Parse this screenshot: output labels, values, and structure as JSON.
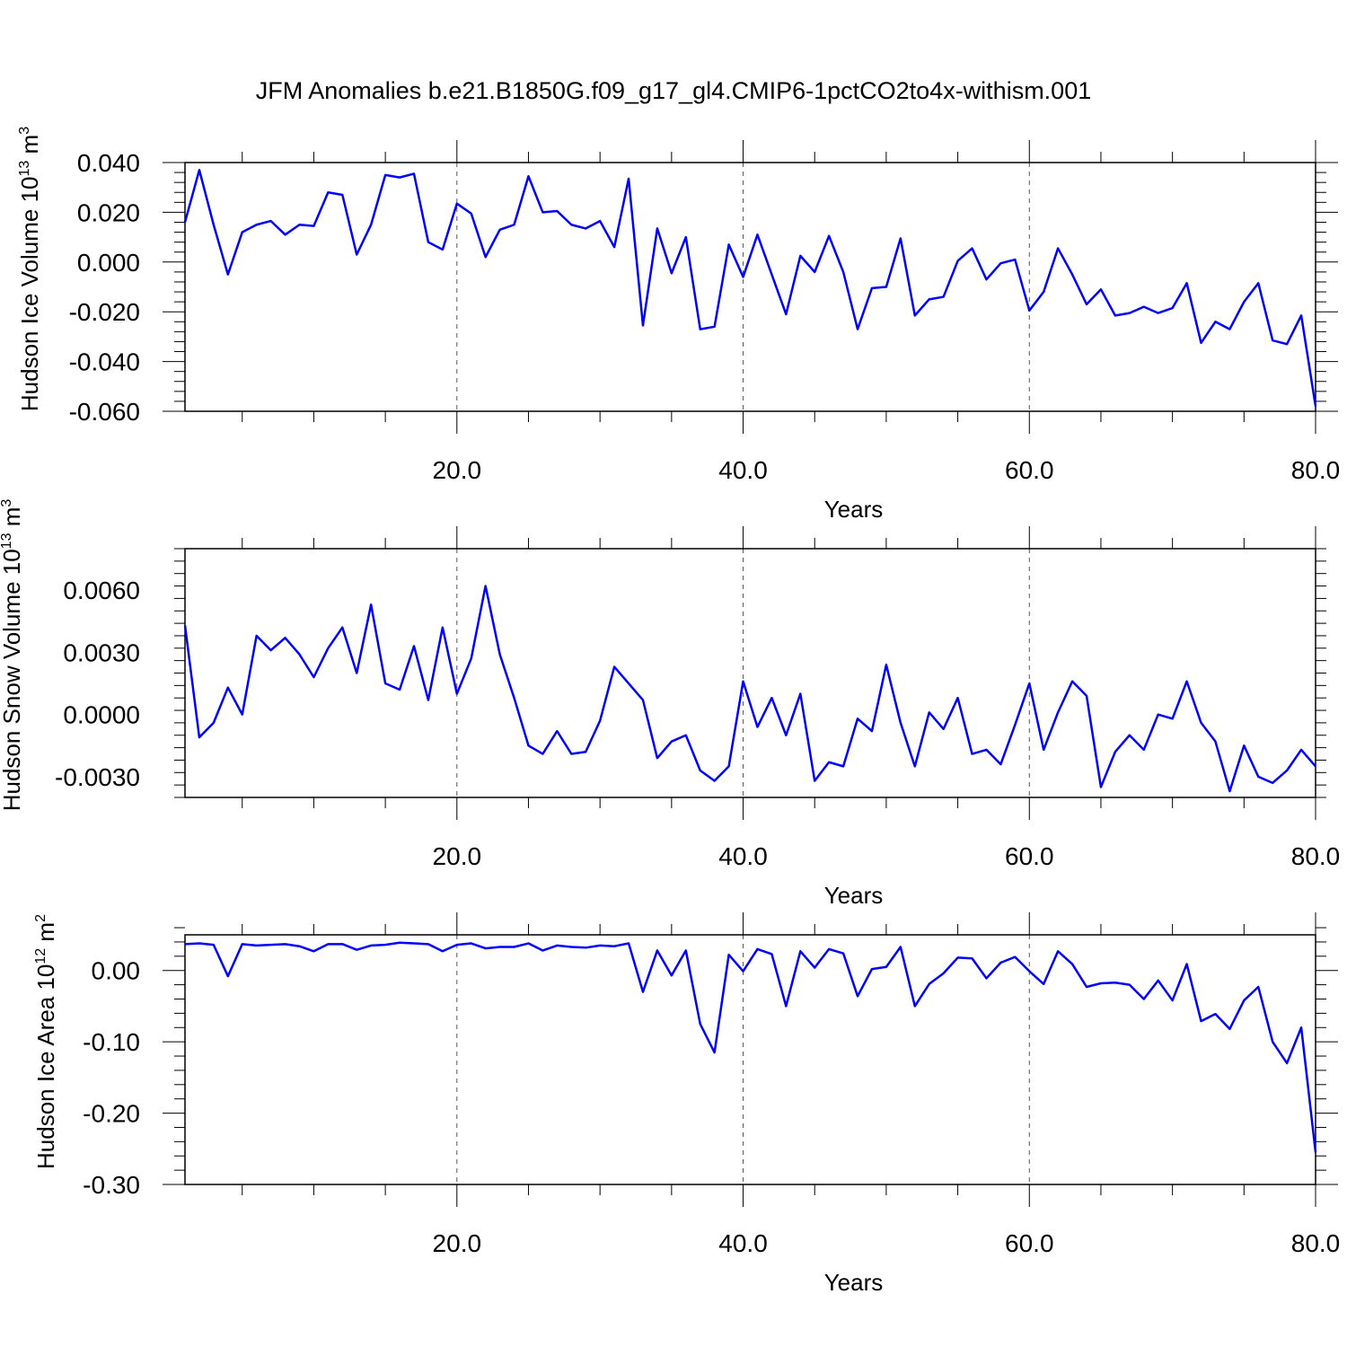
{
  "title": "JFM Anomalies b.e21.B1850G.f09_g17_gl4.CMIP6-1pctCO2to4x-withism.001",
  "colors": {
    "line": "#0000ff",
    "axis": "#000000",
    "grid": "#555555"
  },
  "chart_data": [
    {
      "type": "line",
      "ylabel": {
        "text": "Hudson Ice Volume 10",
        "exp": "13",
        "unit": " m",
        "unit_exp": "3"
      },
      "xlabel": "Years",
      "xlim": [
        1,
        80
      ],
      "ylim": [
        -0.06,
        0.04
      ],
      "x_ticks": [
        20,
        40,
        60,
        80
      ],
      "x_tick_labels": [
        "20.0",
        "40.0",
        "60.0",
        "80.0"
      ],
      "y_ticks": [
        -0.06,
        -0.04,
        -0.02,
        0.0,
        0.02,
        0.04
      ],
      "y_tick_labels": [
        "-0.060",
        "-0.040",
        "-0.020",
        "0.000",
        "0.020",
        "0.040"
      ],
      "grid": "vertical dashed at major x ticks",
      "x": [
        1,
        2,
        3,
        4,
        5,
        6,
        7,
        8,
        9,
        10,
        11,
        12,
        13,
        14,
        15,
        16,
        17,
        18,
        19,
        20,
        21,
        22,
        23,
        24,
        25,
        26,
        27,
        28,
        29,
        30,
        31,
        32,
        33,
        34,
        35,
        36,
        37,
        38,
        39,
        40,
        41,
        42,
        43,
        44,
        45,
        46,
        47,
        48,
        49,
        50,
        51,
        52,
        53,
        54,
        55,
        56,
        57,
        58,
        59,
        60,
        61,
        62,
        63,
        64,
        65,
        66,
        67,
        68,
        69,
        70,
        71,
        72,
        73,
        74,
        75,
        76,
        77,
        78,
        79,
        80
      ],
      "series": [
        {
          "values": [
            0.016,
            0.037,
            0.015,
            -0.005,
            0.012,
            0.015,
            0.0165,
            0.011,
            0.015,
            0.0145,
            0.028,
            0.027,
            0.003,
            0.015,
            0.035,
            0.034,
            0.0355,
            0.008,
            0.005,
            0.0235,
            0.0195,
            0.002,
            0.013,
            0.015,
            0.0345,
            0.02,
            0.0205,
            0.015,
            0.0135,
            0.0165,
            0.006,
            0.0335,
            -0.0255,
            0.0135,
            -0.0045,
            0.01,
            -0.027,
            -0.026,
            0.007,
            -0.006,
            0.011,
            -0.005,
            -0.021,
            0.0025,
            -0.004,
            0.0105,
            -0.004,
            -0.027,
            -0.0105,
            -0.01,
            0.0095,
            -0.0215,
            -0.015,
            -0.014,
            0.0005,
            0.0055,
            -0.007,
            -0.0005,
            0.001,
            -0.0195,
            -0.012,
            0.0055,
            -0.005,
            -0.017,
            -0.011,
            -0.0215,
            -0.0205,
            -0.018,
            -0.0205,
            -0.0185,
            -0.0085,
            -0.0325,
            -0.024,
            -0.027,
            -0.016,
            -0.0085,
            -0.0315,
            -0.033,
            -0.0215,
            -0.058
          ]
        }
      ]
    },
    {
      "type": "line",
      "ylabel": {
        "text": "Hudson Snow Volume 10",
        "exp": "13",
        "unit": " m",
        "unit_exp": "3"
      },
      "xlabel": "Years",
      "xlim": [
        1,
        80
      ],
      "ylim": [
        -0.004,
        0.008
      ],
      "x_ticks": [
        20,
        40,
        60,
        80
      ],
      "x_tick_labels": [
        "20.0",
        "40.0",
        "60.0",
        "80.0"
      ],
      "y_ticks": [
        -0.003,
        0.0,
        0.003,
        0.006
      ],
      "y_tick_labels": [
        "-0.0030",
        "0.0000",
        "0.0030",
        "0.0060"
      ],
      "grid": "vertical dashed at major x ticks",
      "x": [
        1,
        2,
        3,
        4,
        5,
        6,
        7,
        8,
        9,
        10,
        11,
        12,
        13,
        14,
        15,
        16,
        17,
        18,
        19,
        20,
        21,
        22,
        23,
        24,
        25,
        26,
        27,
        28,
        29,
        30,
        31,
        32,
        33,
        34,
        35,
        36,
        37,
        38,
        39,
        40,
        41,
        42,
        43,
        44,
        45,
        46,
        47,
        48,
        49,
        50,
        51,
        52,
        53,
        54,
        55,
        56,
        57,
        58,
        59,
        60,
        61,
        62,
        63,
        64,
        65,
        66,
        67,
        68,
        69,
        70,
        71,
        72,
        73,
        74,
        75,
        76,
        77,
        78,
        79,
        80
      ],
      "series": [
        {
          "values": [
            0.0043,
            -0.0011,
            -0.0004,
            0.0013,
            -0.0,
            0.0038,
            0.0031,
            0.0037,
            0.0029,
            0.0018,
            0.0032,
            0.0042,
            0.002,
            0.0053,
            0.0015,
            0.0012,
            0.0033,
            0.0007,
            0.0042,
            0.001,
            0.0027,
            0.0062,
            0.0029,
            0.0008,
            -0.0015,
            -0.0019,
            -0.0008,
            -0.0019,
            -0.0018,
            -0.0003,
            0.0023,
            0.0015,
            0.0007,
            -0.0021,
            -0.0013,
            -0.001,
            -0.0027,
            -0.0032,
            -0.0025,
            0.0016,
            -0.0006,
            0.0008,
            -0.001,
            0.001,
            -0.0032,
            -0.0023,
            -0.0025,
            -0.0002,
            -0.0008,
            0.0024,
            -0.0004,
            -0.0025,
            0.0001,
            -0.0007,
            0.0008,
            -0.0019,
            -0.0017,
            -0.0024,
            -0.0005,
            0.0015,
            -0.0017,
            0.0001,
            0.0016,
            0.0009,
            -0.0035,
            -0.0018,
            -0.001,
            -0.0017,
            -0.0,
            -0.0002,
            0.0016,
            -0.0004,
            -0.0013,
            -0.0037,
            -0.0015,
            -0.003,
            -0.0033,
            -0.0027,
            -0.0017,
            -0.0025
          ]
        }
      ]
    },
    {
      "type": "line",
      "ylabel": {
        "text": "Hudson Ice Area 10",
        "exp": "12",
        "unit": " m",
        "unit_exp": "2"
      },
      "xlabel": "Years",
      "xlim": [
        1,
        80
      ],
      "ylim": [
        -0.3,
        0.05
      ],
      "x_ticks": [
        20,
        40,
        60,
        80
      ],
      "x_tick_labels": [
        "20.0",
        "40.0",
        "60.0",
        "80.0"
      ],
      "y_ticks": [
        -0.3,
        -0.2,
        -0.1,
        0.0
      ],
      "y_tick_labels": [
        "-0.30",
        "-0.20",
        "-0.10",
        "0.00"
      ],
      "grid": "vertical dashed at major x ticks",
      "x": [
        1,
        2,
        3,
        4,
        5,
        6,
        7,
        8,
        9,
        10,
        11,
        12,
        13,
        14,
        15,
        16,
        17,
        18,
        19,
        20,
        21,
        22,
        23,
        24,
        25,
        26,
        27,
        28,
        29,
        30,
        31,
        32,
        33,
        34,
        35,
        36,
        37,
        38,
        39,
        40,
        41,
        42,
        43,
        44,
        45,
        46,
        47,
        48,
        49,
        50,
        51,
        52,
        53,
        54,
        55,
        56,
        57,
        58,
        59,
        60,
        61,
        62,
        63,
        64,
        65,
        66,
        67,
        68,
        69,
        70,
        71,
        72,
        73,
        74,
        75,
        76,
        77,
        78,
        79,
        80
      ],
      "series": [
        {
          "values": [
            0.037,
            0.038,
            0.036,
            -0.008,
            0.037,
            0.035,
            0.036,
            0.037,
            0.034,
            0.027,
            0.037,
            0.037,
            0.029,
            0.035,
            0.036,
            0.039,
            0.038,
            0.037,
            0.027,
            0.036,
            0.038,
            0.031,
            0.033,
            0.033,
            0.038,
            0.028,
            0.035,
            0.033,
            0.032,
            0.035,
            0.034,
            0.038,
            -0.03,
            0.028,
            -0.007,
            0.028,
            -0.075,
            -0.115,
            0.022,
            -0.001,
            0.03,
            0.023,
            -0.05,
            0.027,
            0.004,
            0.03,
            0.024,
            -0.036,
            0.002,
            0.005,
            0.033,
            -0.05,
            -0.019,
            -0.004,
            0.018,
            0.017,
            -0.011,
            0.011,
            0.019,
            -0.001,
            -0.019,
            0.027,
            0.009,
            -0.023,
            -0.018,
            -0.017,
            -0.02,
            -0.04,
            -0.014,
            -0.042,
            0.009,
            -0.071,
            -0.061,
            -0.082,
            -0.042,
            -0.023,
            -0.1,
            -0.13,
            -0.08,
            -0.255
          ]
        }
      ]
    }
  ]
}
